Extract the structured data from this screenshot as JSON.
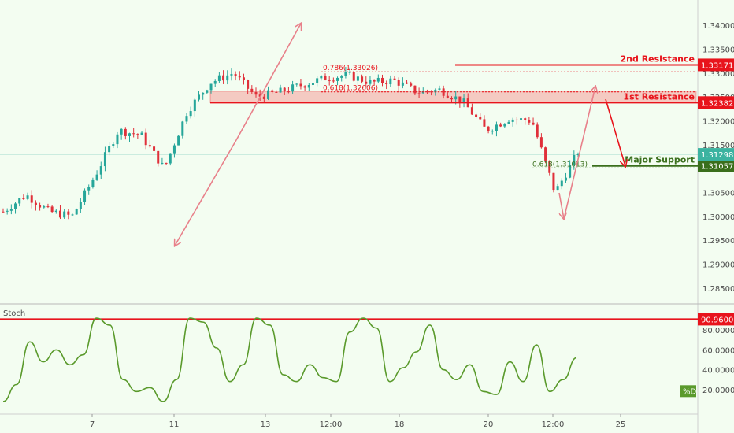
{
  "colors": {
    "background": "#f3fdf1",
    "resistance": "#e8141c",
    "resistance_zone": "#f4b4ae",
    "support": "#3a6f1c",
    "arrow": "#e8808a",
    "stoch": "#5a9a2c",
    "candle_up": "#26a69a",
    "candle_down": "#e0303a",
    "price_tag": "#3bb3a0"
  },
  "chart_data": [
    {
      "type": "candlestick",
      "title": "",
      "y_ticks": [
        "1.34000",
        "1.33500",
        "1.33000",
        "1.32500",
        "1.32000",
        "1.31500",
        "1.31000",
        "1.30500",
        "1.30000",
        "1.29500",
        "1.29000",
        "1.28500"
      ],
      "ylim": [
        1.283,
        1.342
      ],
      "x_ticks": [
        "7",
        "11",
        "13",
        "12:00",
        "18",
        "20",
        "12:00",
        "25"
      ],
      "levels": [
        {
          "label": "2nd Resistance",
          "value": 1.33171,
          "value_label": "1.33171"
        },
        {
          "label": "1st Resistance",
          "value": 1.32382,
          "value_label": "1.32382"
        },
        {
          "label": "Major Support",
          "value": 1.31057,
          "value_label": "1.31057"
        }
      ],
      "current_price": {
        "value": 1.31298,
        "label": "1.31298"
      },
      "resistance_zone": [
        1.3238,
        1.3262
      ],
      "fib_labels": [
        {
          "label": "0.786(1.33026)",
          "value": 1.33026
        },
        {
          "label": "0.618(1.32606)",
          "value": 1.32606
        },
        {
          "label": "0.618(1.31013)",
          "value": 1.31013
        }
      ],
      "path_points": [
        1.301,
        1.3045,
        1.301,
        1.3,
        1.3085,
        1.318,
        1.317,
        1.31,
        1.322,
        1.328,
        1.33,
        1.325,
        1.326,
        1.3275,
        1.329,
        1.3295,
        1.328,
        1.3285,
        1.326,
        1.3265,
        1.324,
        1.318,
        1.3205,
        1.32,
        1.305,
        1.3135
      ]
    },
    {
      "type": "line",
      "title": "Stoch",
      "series": [
        {
          "name": "%D",
          "values": [
            8,
            25,
            68,
            48,
            60,
            45,
            55,
            92,
            85,
            30,
            18,
            22,
            8,
            30,
            92,
            88,
            62,
            28,
            45,
            92,
            85,
            35,
            28,
            45,
            32,
            28,
            78,
            92,
            82,
            28,
            42,
            58,
            85,
            40,
            30,
            45,
            18,
            15,
            48,
            28,
            65,
            18,
            30,
            52
          ]
        }
      ],
      "y_ticks": [
        "80.0000",
        "60.0000",
        "40.0000",
        "20.0000"
      ],
      "ylim": [
        0,
        100
      ],
      "level": {
        "value": 90.96,
        "label": "90.9600"
      }
    }
  ]
}
